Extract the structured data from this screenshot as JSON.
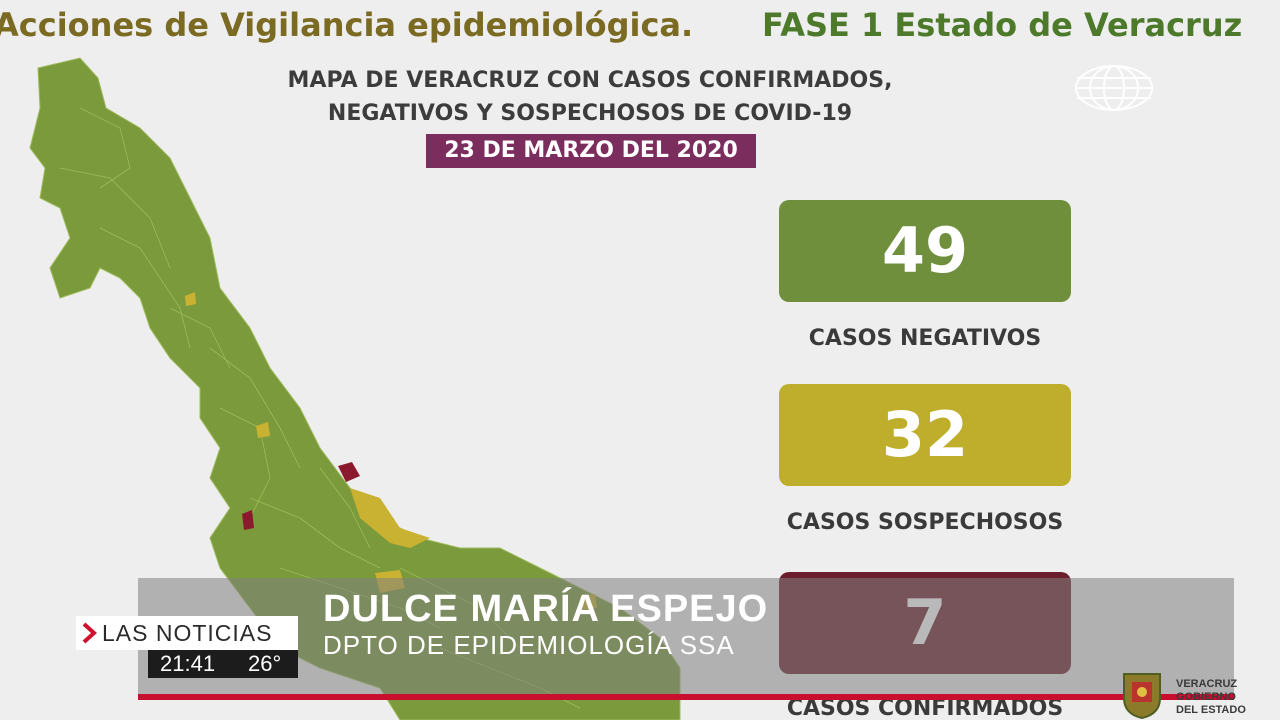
{
  "header": {
    "title_left": "Acciones de Vigilancia epidemiológica.",
    "title_right": "FASE 1 Estado de Veracruz"
  },
  "map_heading": {
    "line1": "MAPA DE VERACRUZ CON CASOS CONFIRMADOS,",
    "line2": "NEGATIVOS Y SOSPECHOSOS DE COVID-19",
    "date": "23 DE MARZO DEL 2020"
  },
  "stats": [
    {
      "value": "49",
      "label": "CASOS NEGATIVOS",
      "color": "#6f8f3c"
    },
    {
      "value": "32",
      "label": "CASOS SOSPECHOSOS",
      "color": "#bfae2c"
    },
    {
      "value": "7",
      "label": "CASOS CONFIRMADOS",
      "color": "#6b1f2c"
    }
  ],
  "map_colors": {
    "negative": "#7a9a3c",
    "suspect": "#c9b232",
    "confirmed": "#8b1a2e"
  },
  "lower_third": {
    "name": "DULCE MARÍA ESPEJO",
    "role": "DPTO DE EPIDEMIOLOGÍA SSA"
  },
  "broadcast": {
    "show": "LAS NOTICIAS",
    "time": "21:41",
    "temperature": "26°",
    "network_logo": "televisa-icon"
  },
  "government": {
    "logo": "coat-of-arms-icon",
    "line1": "VERACRUZ",
    "line2": "GOBIERNO",
    "line3": "DEL ESTADO"
  }
}
